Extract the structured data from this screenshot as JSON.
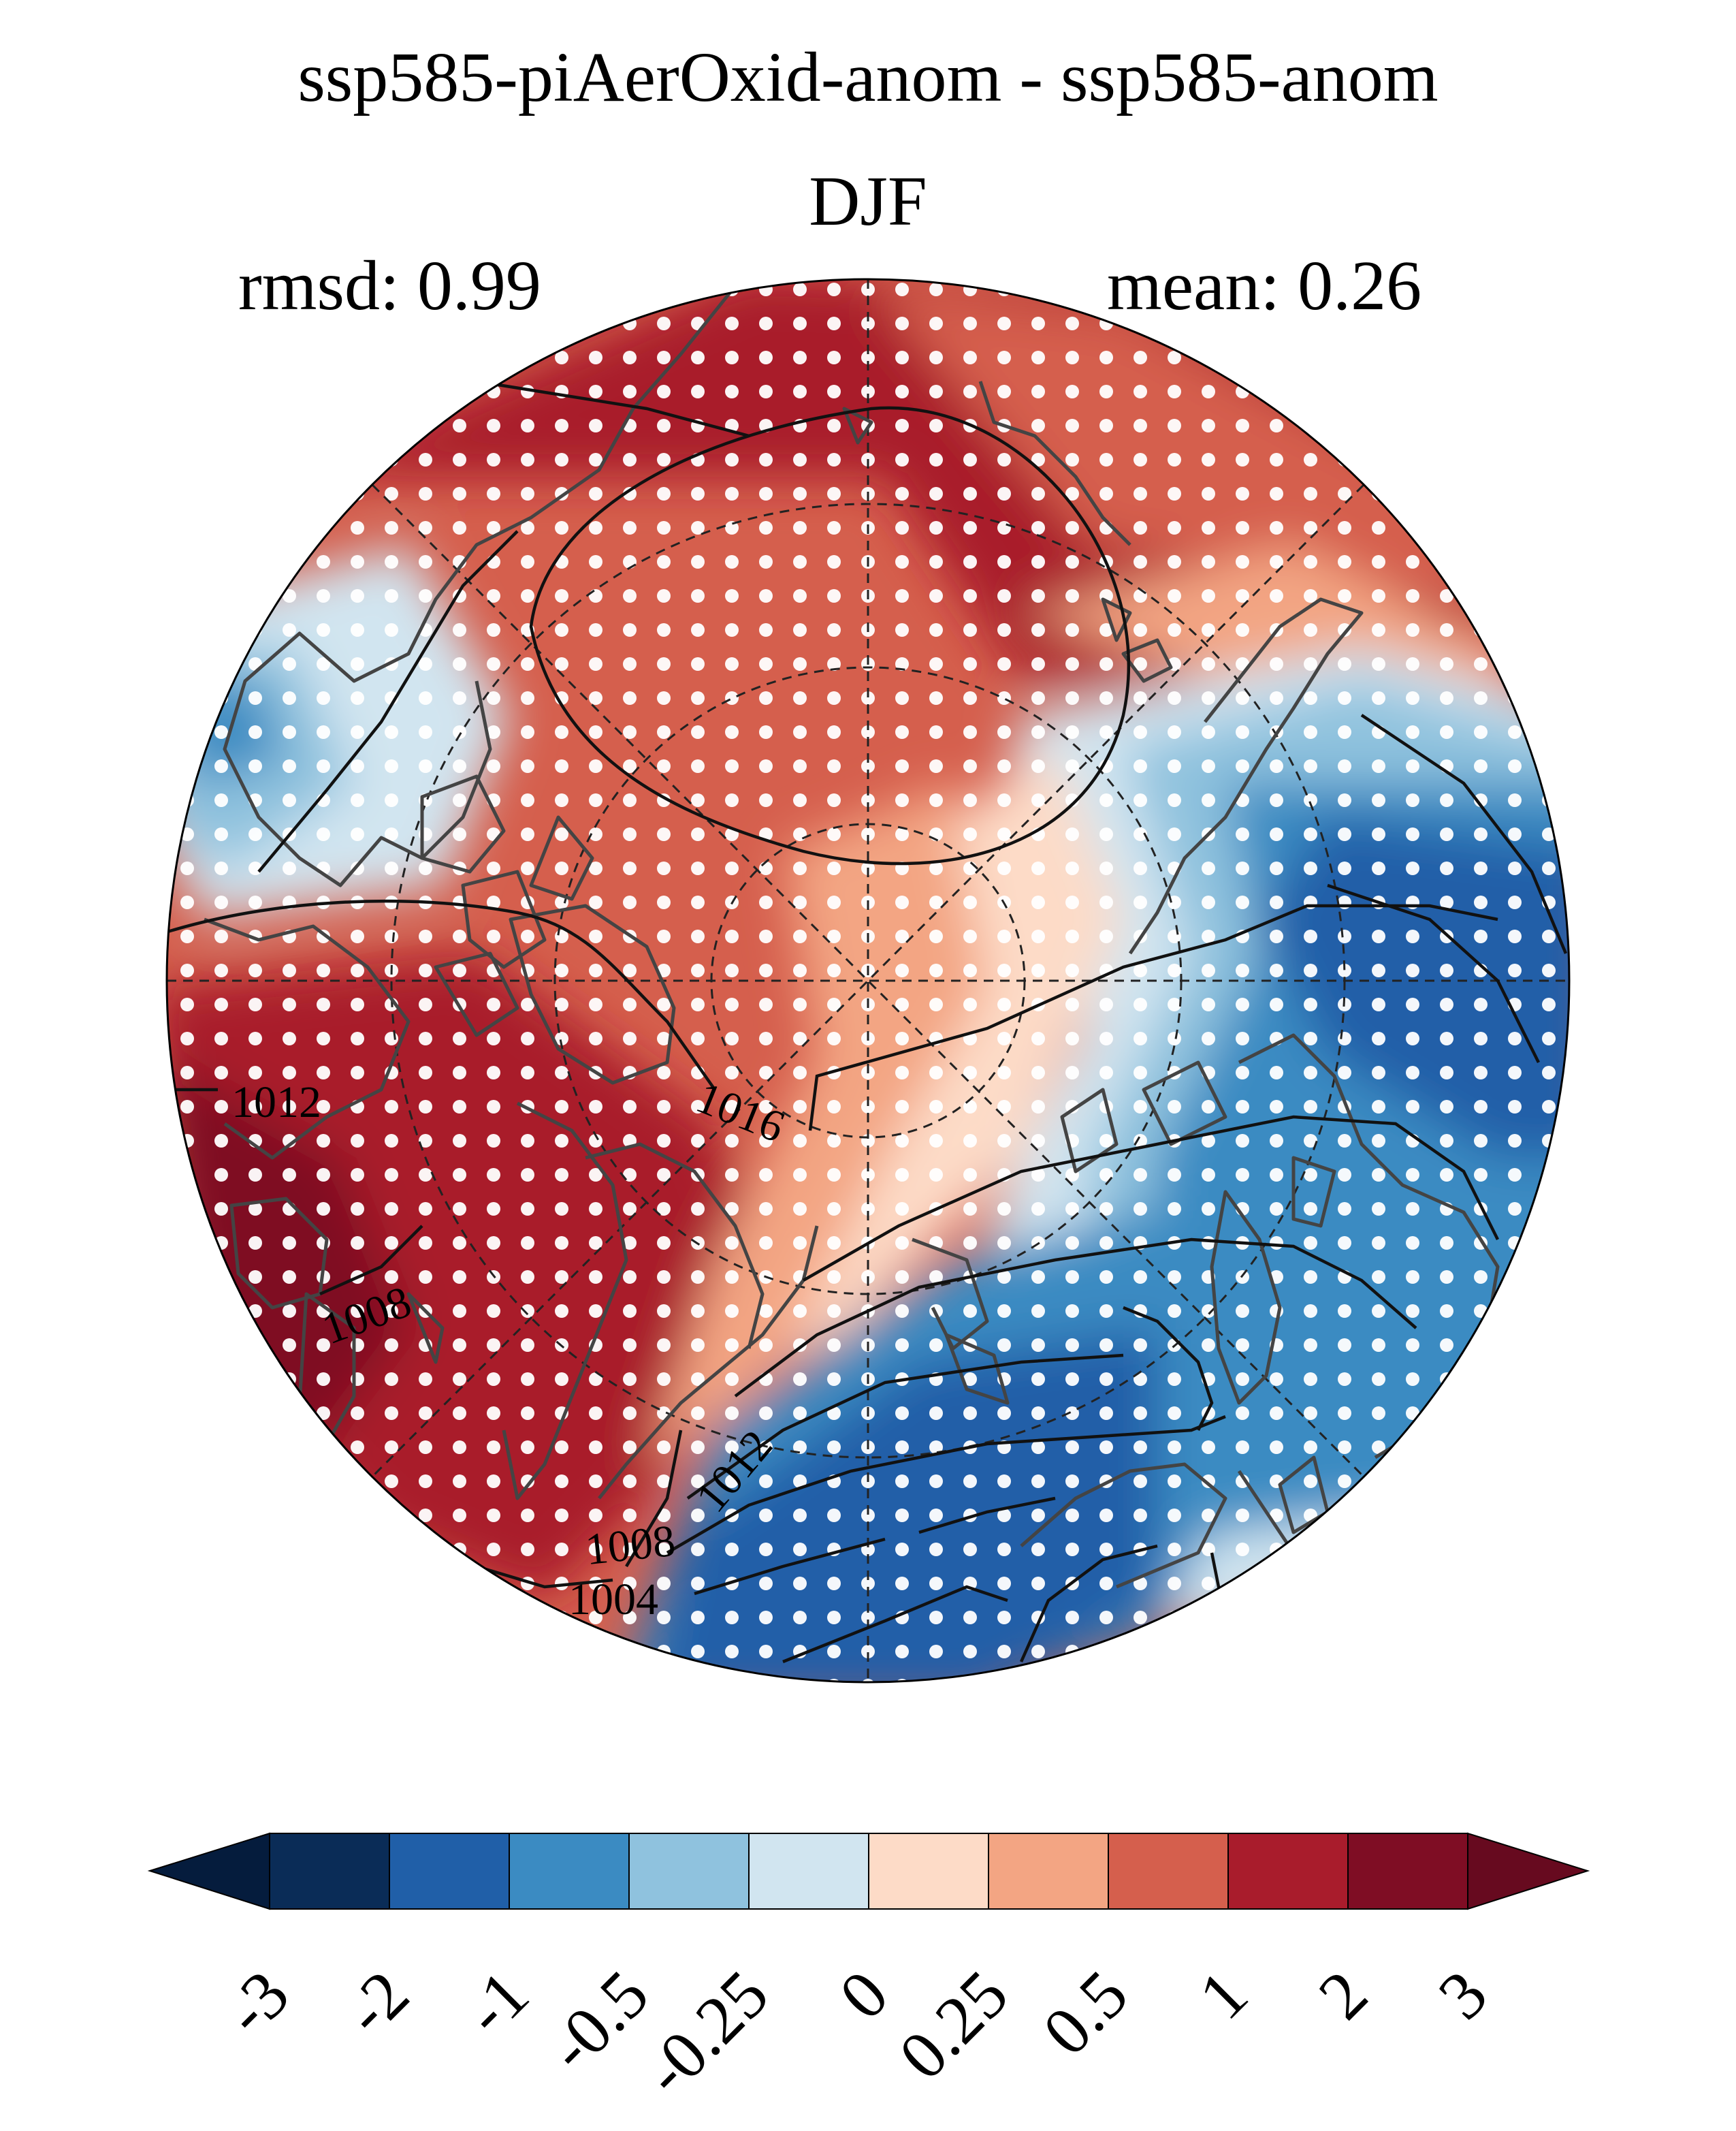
{
  "title": {
    "line1": "ssp585-piAerOxid-anom - ssp585-anom",
    "line2": "DJF"
  },
  "stats": {
    "rmsd": "rmsd: 0.99",
    "mean": "mean: 0.26"
  },
  "map": {
    "projection": "north-polar-stereographic",
    "stippling": "white-dots",
    "contour_color": "#111111",
    "coastline_color": "#444444",
    "contour_labels": [
      "1012",
      "1016",
      "1008",
      "1012",
      "1008",
      "1004"
    ]
  },
  "colorbar": {
    "tick_labels": [
      "-3",
      "-2",
      "-1",
      "-0.5",
      "-0.25",
      "0",
      "0.25",
      "0.5",
      "1",
      "2",
      "3"
    ],
    "colors": [
      "#0a2c57",
      "#205fa8",
      "#3b8bc2",
      "#8fc2de",
      "#d1e5f0",
      "#fddbc7",
      "#f3a583",
      "#d55f4d",
      "#a91c2c",
      "#7f0d24"
    ],
    "extend_low_color": "#051c3d",
    "extend_high_color": "#670a1f"
  }
}
